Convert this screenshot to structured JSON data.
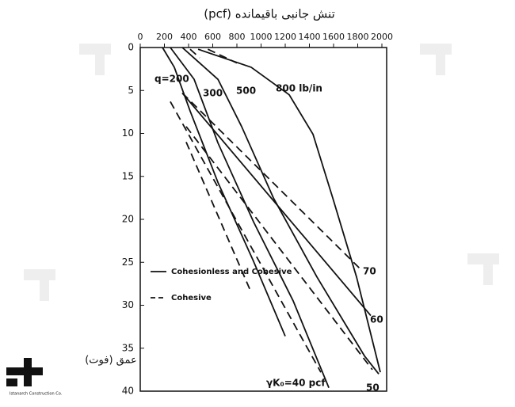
{
  "chart_data": {
    "type": "line",
    "title": "تنش جانبی باقیمانده (pcf)",
    "y_label": "عمق (فوت)",
    "xlim": [
      0,
      2000
    ],
    "xticks": [
      0,
      200,
      400,
      600,
      800,
      1000,
      1200,
      1400,
      1600,
      1800,
      2000
    ],
    "ylim": [
      0,
      40
    ],
    "yticks": [
      0,
      5,
      10,
      15,
      20,
      25,
      30,
      35,
      40
    ],
    "y_inverted": true,
    "series": [
      {
        "color": "#111",
        "dash": false,
        "x": [
          184,
          282,
          413,
          643,
          938,
          1200
        ],
        "values": [
          0,
          2.3,
          7.4,
          15.7,
          24.9,
          33.6
        ]
      },
      {
        "color": "#111",
        "dash": false,
        "x": [
          249,
          446,
          643,
          938,
          1266,
          1561
        ],
        "values": [
          0,
          3.7,
          11.1,
          20.3,
          29.5,
          39.6
        ]
      },
      {
        "color": "#111",
        "dash": false,
        "x": [
          348,
          643,
          839,
          1102,
          1462,
          1856,
          1974
        ],
        "values": [
          0,
          3.7,
          9.2,
          17.5,
          26.7,
          35.9,
          38
        ]
      },
      {
        "color": "#111",
        "dash": false,
        "x": [
          479,
          918,
          1233,
          1430,
          1593,
          1790,
          1987
        ],
        "values": [
          0.2,
          2.3,
          5.5,
          10.1,
          17.5,
          26.7,
          37.8
        ]
      },
      {
        "color": "#111",
        "dash": false,
        "x": [
          348,
          1908
        ],
        "values": [
          5.3,
          31.2
        ]
      },
      {
        "color": "#111",
        "dash": true,
        "x": [
          348,
          1823
        ],
        "values": [
          5.3,
          25.8
        ]
      },
      {
        "color": "#111",
        "dash": true,
        "x": [
          249,
          1495
        ],
        "values": [
          6.3,
          37.8
        ]
      },
      {
        "color": "#111",
        "dash": true,
        "x": [
          380,
          1921
        ],
        "values": [
          9.2,
          37.5
        ]
      },
      {
        "color": "#111",
        "dash": true,
        "x": [
          380,
          918
        ],
        "values": [
          11,
          28.5
        ]
      },
      {
        "color": "#111",
        "dash": true,
        "x": [
          413,
          492
        ],
        "values": [
          0.2,
          1.2
        ]
      },
      {
        "color": "#111",
        "dash": true,
        "x": [
          560,
          800
        ],
        "values": [
          0.2,
          1.8
        ]
      }
    ],
    "legend": [
      {
        "label": "Cohesionless and Cohesive",
        "dash": false
      },
      {
        "label": "Cohesive",
        "dash": true
      }
    ],
    "annotations": [
      "q=200",
      "300",
      "500",
      "800 lb/in",
      "70",
      "60",
      "50",
      "γK₀=40 pcf"
    ],
    "logo_text": "Istanarch Construction Co."
  }
}
